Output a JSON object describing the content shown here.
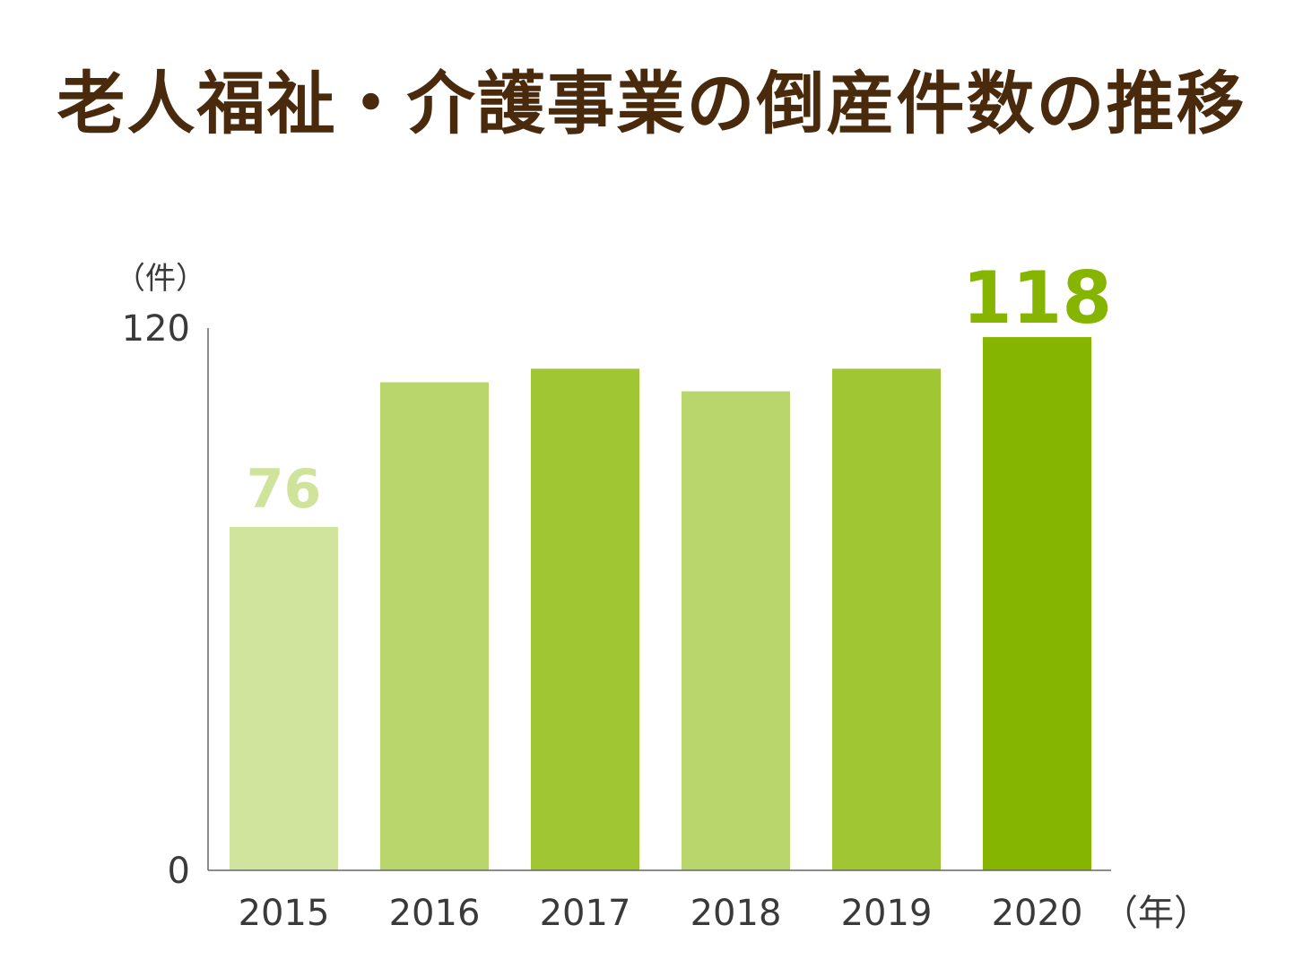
{
  "title": "老人福祉・介護事業の倒産件数の推移",
  "chart_data": {
    "type": "bar",
    "categories": [
      "2015",
      "2016",
      "2017",
      "2018",
      "2019",
      "2020"
    ],
    "values": [
      76,
      108,
      111,
      106,
      111,
      118
    ],
    "data_labels": [
      {
        "index": 0,
        "text": "76",
        "color": "#cfe39a"
      },
      {
        "index": 5,
        "text": "118",
        "color": "#86b500"
      }
    ],
    "bar_colors": [
      "#d0e49d",
      "#b8d66c",
      "#a0c634",
      "#b8d66c",
      "#a0c634",
      "#86b500"
    ],
    "ylabel": "（件）",
    "xlabel": "（年）",
    "ylim": [
      0,
      120
    ],
    "yticks": [
      "0",
      "120"
    ],
    "grid": false
  }
}
